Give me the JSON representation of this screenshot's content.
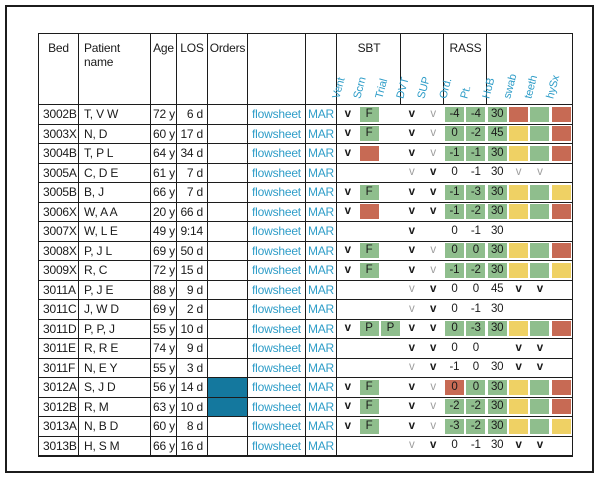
{
  "colors": {
    "cell_green": "#8fbe8d",
    "cell_yellow": "#efd164",
    "cell_red": "#c76a54",
    "link_teal": "#2f9dc8",
    "orders_fill_teal": "#14789e",
    "check_gray": "#9e9e9e",
    "ink": "#1a1a1a"
  },
  "table": {
    "headers": {
      "bed": "Bed",
      "patient_name": "Patient name",
      "age": "Age",
      "los": "LOS",
      "orders": "Orders",
      "sbt_group": "SBT",
      "rass_group": "RASS",
      "rotated": [
        "Vent",
        "Scrn",
        "Trial",
        "DVT",
        "SUP",
        "Ord.",
        "Pt.",
        "HoB",
        "swab",
        "teeth",
        "hySx"
      ]
    },
    "link_labels": {
      "flowsheet": "flowsheet",
      "mar": "MAR"
    },
    "rows": [
      {
        "bed": "3002B",
        "name": "T, V W",
        "age": "72 y",
        "los": "6 d",
        "orders_filled": false,
        "checks": [
          {
            "text": "v",
            "style": "bold"
          },
          {
            "text": "F",
            "bg": "green"
          },
          {},
          {
            "text": "v",
            "style": "bold"
          },
          {
            "text": "v",
            "style": "gray"
          },
          {
            "text": "-4",
            "bg": "green"
          },
          {
            "text": "-4",
            "bg": "green"
          },
          {
            "text": "30",
            "bg": "green"
          },
          {
            "bg": "red"
          },
          {
            "bg": "green"
          },
          {
            "bg": "red"
          }
        ]
      },
      {
        "bed": "3003X",
        "name": "N, D",
        "age": "60 y",
        "los": "17 d",
        "orders_filled": false,
        "checks": [
          {
            "text": "v",
            "style": "bold"
          },
          {
            "text": "F",
            "bg": "green"
          },
          {},
          {
            "text": "v",
            "style": "bold"
          },
          {
            "text": "v",
            "style": "gray"
          },
          {
            "text": "0",
            "bg": "green"
          },
          {
            "text": "-2",
            "bg": "green"
          },
          {
            "text": "45",
            "bg": "green"
          },
          {
            "bg": "yellow"
          },
          {
            "bg": "green"
          },
          {
            "bg": "red"
          }
        ]
      },
      {
        "bed": "3004B",
        "name": "T, P L",
        "age": "64 y",
        "los": "34 d",
        "orders_filled": false,
        "checks": [
          {
            "text": "v",
            "style": "bold"
          },
          {
            "bg": "red"
          },
          {},
          {
            "text": "v",
            "style": "bold"
          },
          {
            "text": "v",
            "style": "gray"
          },
          {
            "text": "-1",
            "bg": "green"
          },
          {
            "text": "-1",
            "bg": "green"
          },
          {
            "text": "30",
            "bg": "green"
          },
          {
            "bg": "yellow"
          },
          {
            "bg": "green"
          },
          {
            "bg": "red"
          }
        ]
      },
      {
        "bed": "3005A",
        "name": "C, D E",
        "age": "61 y",
        "los": "7 d",
        "orders_filled": false,
        "checks": [
          {},
          {},
          {},
          {
            "text": "v",
            "style": "gray"
          },
          {
            "text": "v",
            "style": "bold"
          },
          {
            "text": "0"
          },
          {
            "text": "-1"
          },
          {
            "text": "30"
          },
          {
            "text": "v",
            "style": "gray"
          },
          {
            "text": "v",
            "style": "gray"
          },
          {}
        ]
      },
      {
        "bed": "3005B",
        "name": "B, J",
        "age": "66 y",
        "los": "7 d",
        "orders_filled": false,
        "checks": [
          {
            "text": "v",
            "style": "bold"
          },
          {
            "text": "F",
            "bg": "green"
          },
          {},
          {
            "text": "v",
            "style": "bold"
          },
          {
            "text": "v",
            "style": "bold"
          },
          {
            "text": "-1",
            "bg": "green"
          },
          {
            "text": "-3",
            "bg": "green"
          },
          {
            "text": "30",
            "bg": "green"
          },
          {
            "bg": "yellow"
          },
          {
            "bg": "green"
          },
          {
            "bg": "yellow"
          }
        ]
      },
      {
        "bed": "3006X",
        "name": "W, A A",
        "age": "20 y",
        "los": "66 d",
        "orders_filled": false,
        "checks": [
          {
            "text": "v",
            "style": "bold"
          },
          {
            "bg": "red"
          },
          {},
          {
            "text": "v",
            "style": "bold"
          },
          {
            "text": "v",
            "style": "bold"
          },
          {
            "text": "-1",
            "bg": "green"
          },
          {
            "text": "-2",
            "bg": "green"
          },
          {
            "text": "30",
            "bg": "green"
          },
          {
            "bg": "yellow"
          },
          {
            "bg": "green"
          },
          {
            "bg": "red"
          }
        ]
      },
      {
        "bed": "3007X",
        "name": "W, L E",
        "age": "49 y",
        "los": "9:14",
        "orders_filled": false,
        "checks": [
          {},
          {},
          {},
          {
            "text": "v",
            "style": "bold"
          },
          {},
          {
            "text": "0"
          },
          {
            "text": "-1"
          },
          {
            "text": "30"
          },
          {},
          {},
          {}
        ]
      },
      {
        "bed": "3008X",
        "name": "P, J L",
        "age": "69 y",
        "los": "50 d",
        "orders_filled": false,
        "checks": [
          {
            "text": "v",
            "style": "bold"
          },
          {
            "text": "F",
            "bg": "green"
          },
          {},
          {
            "text": "v",
            "style": "bold"
          },
          {
            "text": "v",
            "style": "gray"
          },
          {
            "text": "0",
            "bg": "green"
          },
          {
            "text": "0",
            "bg": "green"
          },
          {
            "text": "30",
            "bg": "green"
          },
          {
            "bg": "yellow"
          },
          {
            "bg": "green"
          },
          {
            "bg": "red"
          }
        ]
      },
      {
        "bed": "3009X",
        "name": "R, C",
        "age": "72 y",
        "los": "15 d",
        "orders_filled": false,
        "checks": [
          {
            "text": "v",
            "style": "bold"
          },
          {
            "text": "F",
            "bg": "green"
          },
          {},
          {
            "text": "v",
            "style": "bold"
          },
          {
            "text": "v",
            "style": "gray"
          },
          {
            "text": "-1",
            "bg": "green"
          },
          {
            "text": "-2",
            "bg": "green"
          },
          {
            "text": "30",
            "bg": "green"
          },
          {
            "bg": "yellow"
          },
          {
            "bg": "green"
          },
          {
            "bg": "yellow"
          }
        ]
      },
      {
        "bed": "3011A",
        "name": "P, J E",
        "age": "88 y",
        "los": "9 d",
        "orders_filled": false,
        "checks": [
          {},
          {},
          {},
          {
            "text": "v",
            "style": "gray"
          },
          {
            "text": "v",
            "style": "bold"
          },
          {
            "text": "0"
          },
          {
            "text": "0"
          },
          {
            "text": "45"
          },
          {
            "text": "v",
            "style": "bold"
          },
          {
            "text": "v",
            "style": "bold"
          },
          {}
        ]
      },
      {
        "bed": "3011C",
        "name": "J, W D",
        "age": "69 y",
        "los": "2 d",
        "orders_filled": false,
        "checks": [
          {},
          {},
          {},
          {
            "text": "v",
            "style": "gray"
          },
          {
            "text": "v",
            "style": "bold"
          },
          {
            "text": "0"
          },
          {
            "text": "-1"
          },
          {
            "text": "30"
          },
          {},
          {},
          {}
        ]
      },
      {
        "bed": "3011D",
        "name": "P, P, J",
        "age": "55 y",
        "los": "10 d",
        "orders_filled": false,
        "checks": [
          {
            "text": "v",
            "style": "bold"
          },
          {
            "text": "P",
            "bg": "green"
          },
          {
            "text": "P",
            "bg": "green"
          },
          {
            "text": "v",
            "style": "bold"
          },
          {
            "text": "v",
            "style": "bold"
          },
          {
            "text": "0",
            "bg": "green"
          },
          {
            "text": "-3",
            "bg": "green"
          },
          {
            "text": "30",
            "bg": "green"
          },
          {
            "bg": "yellow"
          },
          {
            "bg": "green"
          },
          {
            "bg": "red"
          }
        ]
      },
      {
        "bed": "3011E",
        "name": "R, R E",
        "age": "74 y",
        "los": "9 d",
        "orders_filled": false,
        "checks": [
          {},
          {},
          {},
          {
            "text": "v",
            "style": "bold"
          },
          {
            "text": "v",
            "style": "bold"
          },
          {
            "text": "0"
          },
          {
            "text": "0"
          },
          {},
          {
            "text": "v",
            "style": "bold"
          },
          {
            "text": "v",
            "style": "bold"
          },
          {}
        ]
      },
      {
        "bed": "3011F",
        "name": "N, E Y",
        "age": "55 y",
        "los": "3 d",
        "orders_filled": false,
        "checks": [
          {},
          {},
          {},
          {
            "text": "v",
            "style": "gray"
          },
          {
            "text": "v",
            "style": "bold"
          },
          {
            "text": "-1"
          },
          {
            "text": "0"
          },
          {
            "text": "30"
          },
          {
            "text": "v",
            "style": "bold"
          },
          {
            "text": "v",
            "style": "bold"
          },
          {}
        ]
      },
      {
        "bed": "3012A",
        "name": "S, J D",
        "age": "56 y",
        "los": "14 d",
        "orders_filled": true,
        "checks": [
          {
            "text": "v",
            "style": "bold"
          },
          {
            "text": "F",
            "bg": "green"
          },
          {},
          {
            "text": "v",
            "style": "bold"
          },
          {
            "text": "v",
            "style": "gray"
          },
          {
            "text": "0",
            "bg": "red"
          },
          {
            "text": "0",
            "bg": "green"
          },
          {
            "text": "30",
            "bg": "green"
          },
          {
            "bg": "yellow"
          },
          {
            "bg": "green"
          },
          {
            "bg": "red"
          }
        ]
      },
      {
        "bed": "3012B",
        "name": "R, M",
        "age": "63 y",
        "los": "10 d",
        "orders_filled": true,
        "checks": [
          {
            "text": "v",
            "style": "bold"
          },
          {
            "text": "F",
            "bg": "green"
          },
          {},
          {
            "text": "v",
            "style": "bold"
          },
          {
            "text": "v",
            "style": "gray"
          },
          {
            "text": "-2",
            "bg": "green"
          },
          {
            "text": "-2",
            "bg": "green"
          },
          {
            "text": "30",
            "bg": "green"
          },
          {
            "bg": "yellow"
          },
          {
            "bg": "green"
          },
          {
            "bg": "red"
          }
        ]
      },
      {
        "bed": "3013A",
        "name": "N, B D",
        "age": "60 y",
        "los": "8 d",
        "orders_filled": false,
        "checks": [
          {
            "text": "v",
            "style": "bold"
          },
          {
            "text": "F",
            "bg": "green"
          },
          {},
          {
            "text": "v",
            "style": "bold"
          },
          {
            "text": "v",
            "style": "gray"
          },
          {
            "text": "-3",
            "bg": "green"
          },
          {
            "text": "-2",
            "bg": "green"
          },
          {
            "text": "30",
            "bg": "green"
          },
          {
            "bg": "yellow"
          },
          {
            "bg": "green"
          },
          {
            "bg": "yellow"
          }
        ]
      },
      {
        "bed": "3013B",
        "name": "H, S M",
        "age": "66 y",
        "los": "16 d",
        "orders_filled": false,
        "checks": [
          {},
          {},
          {},
          {
            "text": "v",
            "style": "gray"
          },
          {
            "text": "v",
            "style": "bold"
          },
          {
            "text": "0"
          },
          {
            "text": "-1"
          },
          {
            "text": "30"
          },
          {
            "text": "v",
            "style": "bold"
          },
          {
            "text": "v",
            "style": "bold"
          },
          {}
        ]
      }
    ]
  }
}
